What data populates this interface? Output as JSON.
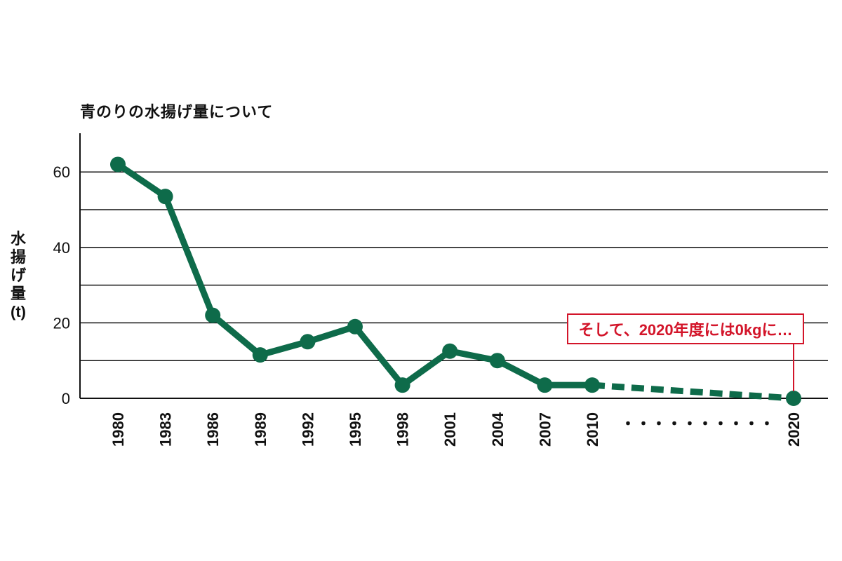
{
  "chart_data": {
    "type": "line",
    "title": "青のりの水揚げ量について",
    "ylabel": "水揚げ量(t)",
    "xlabel": "",
    "ylim": [
      0,
      70
    ],
    "yticks": [
      0,
      20,
      40,
      60
    ],
    "gridlines": [
      10,
      20,
      30,
      40,
      50,
      60
    ],
    "grid": true,
    "categories": [
      "1980",
      "1983",
      "1986",
      "1989",
      "1992",
      "1995",
      "1998",
      "2001",
      "2004",
      "2007",
      "2010",
      "2020"
    ],
    "series": [
      {
        "values": [
          62,
          53.5,
          22,
          11.5,
          15,
          19,
          3.5,
          12.5,
          10,
          3.5,
          3.5,
          0
        ],
        "color": "#0e6b4a",
        "dashed_from_index": 10
      }
    ],
    "gap_dots": "・・・・・・・・・・",
    "annotation": {
      "text": "そして、2020年度には0kgに…",
      "target_index": 11,
      "color": "#d3152a"
    }
  }
}
